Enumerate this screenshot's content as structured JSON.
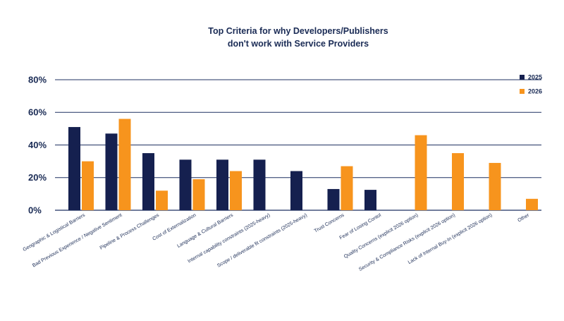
{
  "chart_data": {
    "type": "bar",
    "title_lines": [
      "Top Criteria for why Developers/Publishers",
      "don't work with Service Providers"
    ],
    "xlabel": "",
    "ylabel": "",
    "ylim": [
      0,
      80
    ],
    "y_ticks": [
      {
        "value": 0,
        "label": "0%"
      },
      {
        "value": 20,
        "label": "20%"
      },
      {
        "value": 40,
        "label": "40%"
      },
      {
        "value": 60,
        "label": "60%"
      },
      {
        "value": 80,
        "label": "80%"
      }
    ],
    "grid": true,
    "legend_position": "top-right",
    "categories": [
      "Geographic & Logistical Barriers",
      "Bad Previous Experience / Negative Sentiment",
      "Pipeline & Process Challenges",
      "Cost of Externalization",
      "Language & Cultural Barriers",
      "Internal capability constraints (2025-heavy)",
      "Scope / deliverable fit constraints (2025-heavy)",
      "Trust Concerns",
      "Fear of Losing Contol",
      "Quality Concerns (explicit 2026 option)",
      "Security & Compliance Risks (explicit 2026 option)",
      "Lack of Internal Buy-In (explicit 2026 option)",
      "Other"
    ],
    "series": [
      {
        "name": "2025",
        "color": "#15204f",
        "values": [
          51,
          47,
          35,
          31,
          31,
          31,
          24,
          13,
          12.5,
          null,
          null,
          null,
          null
        ]
      },
      {
        "name": "2026",
        "color": "#f7941d",
        "values": [
          30,
          56,
          12,
          19,
          24,
          null,
          null,
          27,
          null,
          46,
          35,
          29,
          7
        ]
      }
    ]
  }
}
